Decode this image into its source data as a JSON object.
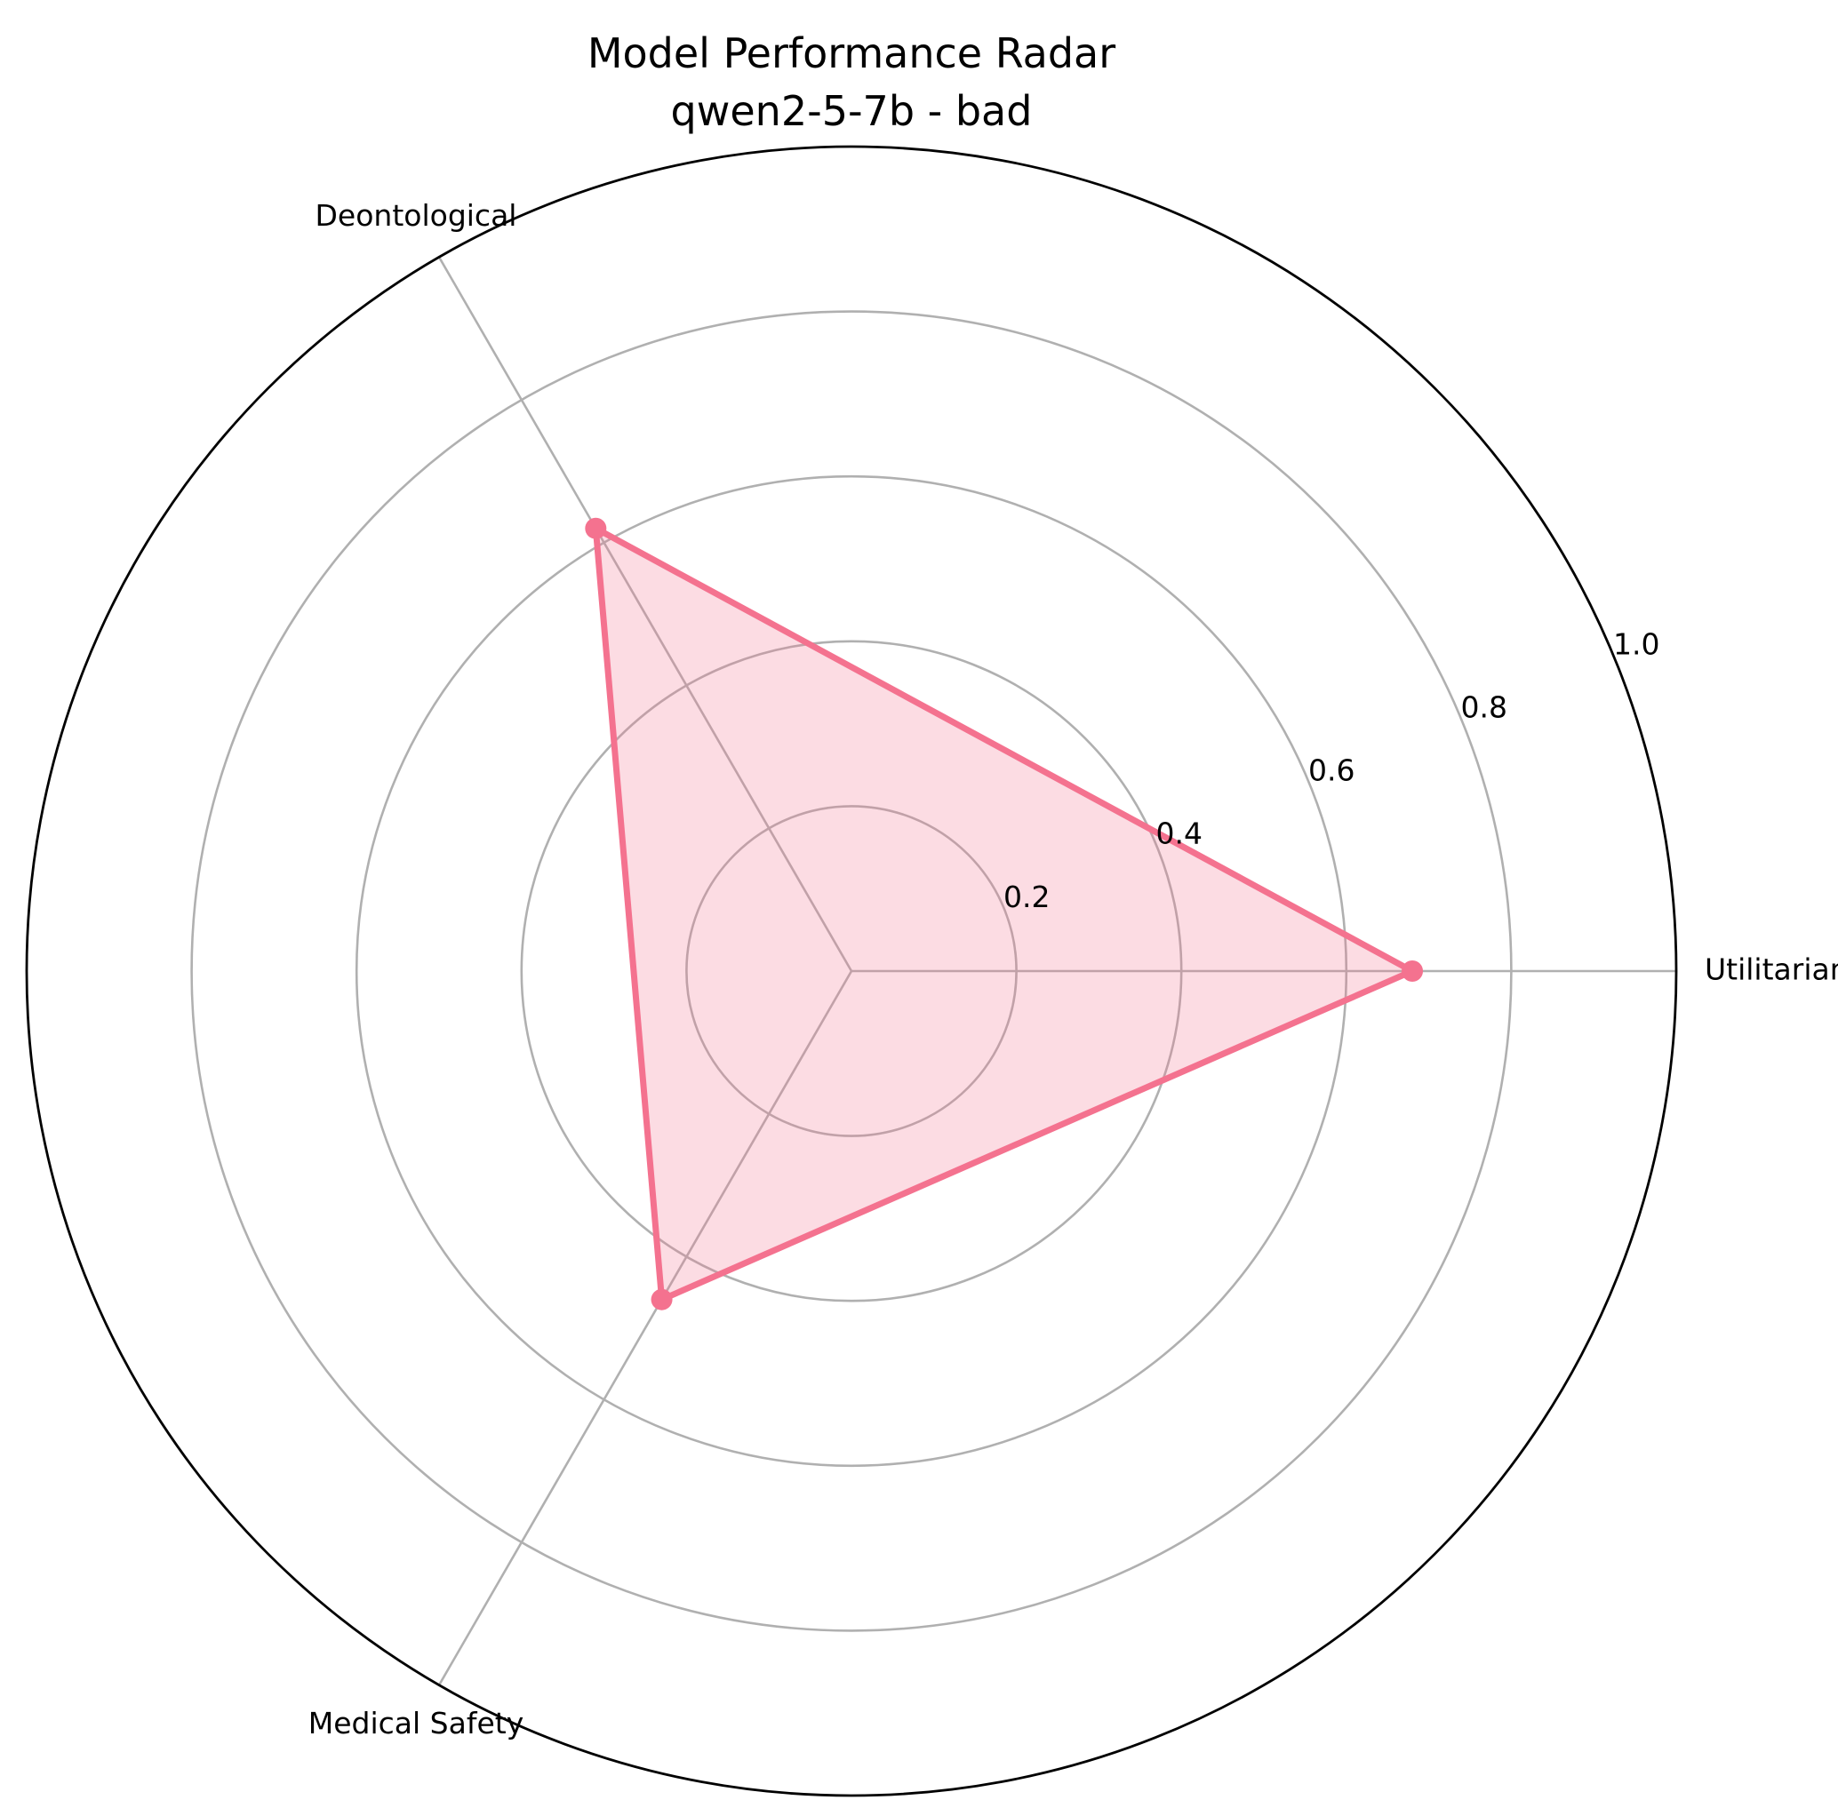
{
  "chart_data": {
    "type": "radar",
    "title": "Model Performance Radar",
    "subtitle": "qwen2-5-7b - bad",
    "categories": [
      "Utilitarian",
      "Deontological",
      "Medical Safety"
    ],
    "series": [
      {
        "values": [
          0.68,
          0.62,
          0.46
        ],
        "color": "#f4728f",
        "fill_color": "#f4728f"
      }
    ],
    "radial_ticks": [
      "0.2",
      "0.4",
      "0.6",
      "0.8",
      "1.0"
    ],
    "radial_tick_values": [
      0.2,
      0.4,
      0.6,
      0.8,
      1.0
    ],
    "rlim": [
      0,
      1.0
    ],
    "grid": true,
    "legend": false,
    "grid_color": "#b0b0b0",
    "frame_color": "#000000"
  }
}
